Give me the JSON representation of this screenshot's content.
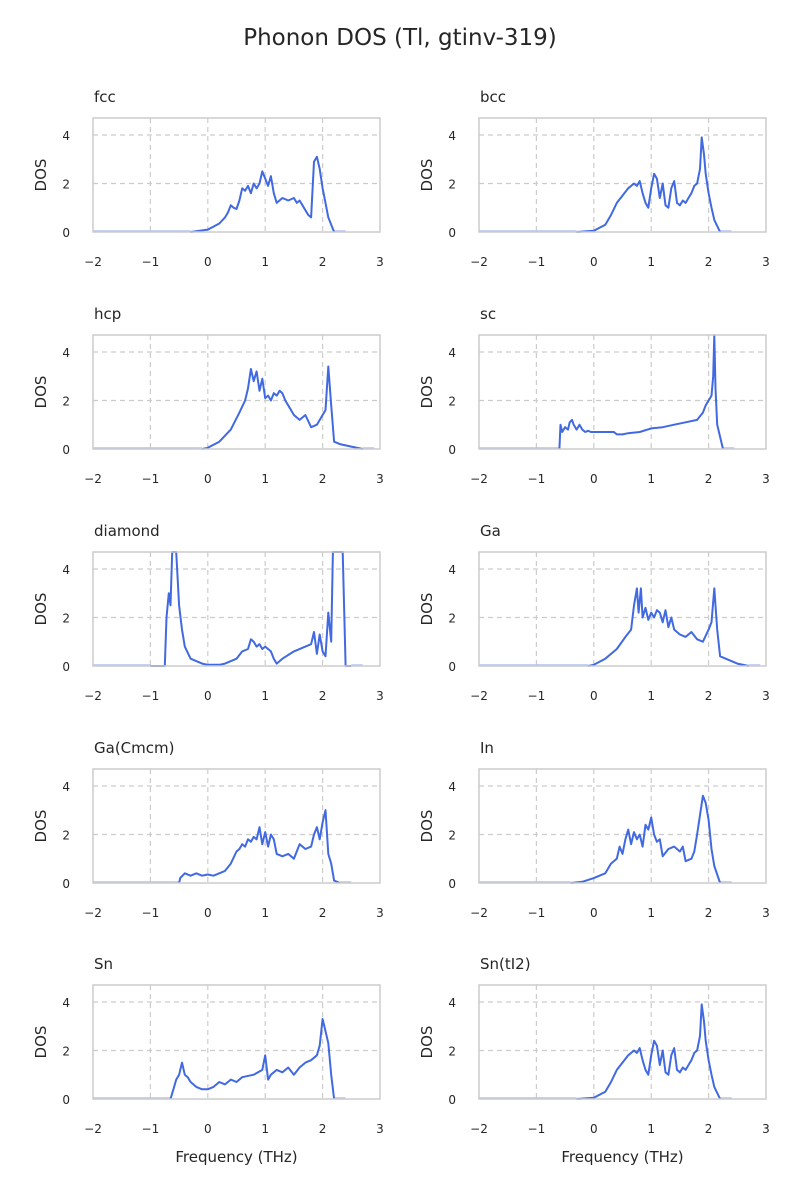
{
  "figure": {
    "title": "Phonon DOS (Tl, gtinv-319)"
  },
  "colors": {
    "line": "#4169e1",
    "tail": "#b4c4ee"
  },
  "chart_data": [
    {
      "type": "line",
      "title": "fcc",
      "xlabel": "",
      "ylabel": "DOS",
      "xlim": [
        -2,
        3
      ],
      "ylim": [
        0,
        4.7
      ],
      "xticks": [
        "−2",
        "−1",
        "0",
        "1",
        "2",
        "3"
      ],
      "yticks": [
        "0",
        "2",
        "4"
      ],
      "grid": true,
      "x": [
        -0.3,
        0.0,
        0.2,
        0.3,
        0.35,
        0.4,
        0.45,
        0.5,
        0.55,
        0.6,
        0.65,
        0.7,
        0.75,
        0.8,
        0.85,
        0.9,
        0.95,
        1.0,
        1.05,
        1.1,
        1.15,
        1.2,
        1.3,
        1.4,
        1.5,
        1.55,
        1.6,
        1.65,
        1.7,
        1.75,
        1.8,
        1.85,
        1.9,
        1.95,
        2.0,
        2.05,
        2.1,
        2.2
      ],
      "y": [
        0.0,
        0.1,
        0.35,
        0.6,
        0.8,
        1.1,
        1.0,
        0.95,
        1.3,
        1.8,
        1.7,
        1.9,
        1.6,
        2.0,
        1.8,
        2.0,
        2.5,
        2.2,
        1.9,
        2.3,
        1.6,
        1.2,
        1.4,
        1.3,
        1.4,
        1.2,
        1.3,
        1.1,
        0.9,
        0.7,
        0.6,
        2.9,
        3.1,
        2.6,
        1.8,
        1.2,
        0.6,
        0.0
      ]
    },
    {
      "type": "line",
      "title": "bcc",
      "xlabel": "",
      "ylabel": "DOS",
      "xlim": [
        -2,
        3
      ],
      "ylim": [
        0,
        4.7
      ],
      "xticks": [
        "−2",
        "−1",
        "0",
        "1",
        "2",
        "3"
      ],
      "yticks": [
        "0",
        "2",
        "4"
      ],
      "grid": true,
      "x": [
        -0.3,
        0.0,
        0.2,
        0.3,
        0.4,
        0.5,
        0.6,
        0.7,
        0.75,
        0.8,
        0.85,
        0.9,
        0.95,
        1.0,
        1.05,
        1.1,
        1.15,
        1.2,
        1.25,
        1.3,
        1.35,
        1.4,
        1.45,
        1.5,
        1.55,
        1.6,
        1.65,
        1.7,
        1.75,
        1.8,
        1.85,
        1.88,
        1.92,
        1.95,
        2.0,
        2.05,
        2.1,
        2.2
      ],
      "y": [
        0.0,
        0.05,
        0.3,
        0.7,
        1.2,
        1.5,
        1.8,
        2.0,
        1.9,
        2.1,
        1.6,
        1.2,
        1.0,
        1.8,
        2.4,
        2.2,
        1.4,
        2.0,
        1.1,
        1.0,
        1.8,
        2.1,
        1.2,
        1.1,
        1.3,
        1.2,
        1.4,
        1.6,
        1.9,
        2.0,
        2.6,
        3.9,
        3.2,
        2.4,
        1.6,
        1.0,
        0.5,
        0.0
      ]
    },
    {
      "type": "line",
      "title": "hcp",
      "xlabel": "",
      "ylabel": "DOS",
      "xlim": [
        -2,
        3
      ],
      "ylim": [
        0,
        4.7
      ],
      "xticks": [
        "−2",
        "−1",
        "0",
        "1",
        "2",
        "3"
      ],
      "yticks": [
        "0",
        "2",
        "4"
      ],
      "grid": true,
      "x": [
        -0.1,
        0.0,
        0.2,
        0.4,
        0.55,
        0.65,
        0.7,
        0.75,
        0.8,
        0.85,
        0.9,
        0.95,
        1.0,
        1.05,
        1.1,
        1.15,
        1.2,
        1.25,
        1.3,
        1.35,
        1.4,
        1.5,
        1.6,
        1.7,
        1.8,
        1.9,
        2.0,
        2.05,
        2.1,
        2.15,
        2.2,
        2.3,
        2.5,
        2.7
      ],
      "y": [
        0.0,
        0.05,
        0.3,
        0.8,
        1.5,
        2.0,
        2.5,
        3.3,
        2.8,
        3.2,
        2.4,
        2.9,
        2.1,
        2.2,
        2.0,
        2.3,
        2.2,
        2.4,
        2.3,
        2.0,
        1.8,
        1.4,
        1.2,
        1.4,
        0.9,
        1.0,
        1.4,
        1.6,
        3.4,
        1.8,
        0.3,
        0.2,
        0.1,
        0.0
      ]
    },
    {
      "type": "line",
      "title": "sc",
      "xlabel": "",
      "ylabel": "DOS",
      "xlim": [
        -2,
        3
      ],
      "ylim": [
        0,
        4.7
      ],
      "xticks": [
        "−2",
        "−1",
        "0",
        "1",
        "2",
        "3"
      ],
      "yticks": [
        "0",
        "2",
        "4"
      ],
      "grid": true,
      "x": [
        -0.6,
        -0.58,
        -0.55,
        -0.5,
        -0.45,
        -0.42,
        -0.38,
        -0.35,
        -0.3,
        -0.25,
        -0.2,
        -0.15,
        -0.1,
        -0.05,
        0.0,
        0.2,
        0.35,
        0.4,
        0.5,
        0.6,
        0.8,
        1.0,
        1.2,
        1.4,
        1.6,
        1.8,
        1.9,
        1.95,
        2.0,
        2.05,
        2.08,
        2.1,
        2.12,
        2.15,
        2.2,
        2.25
      ],
      "y": [
        0.0,
        1.0,
        0.7,
        0.9,
        0.8,
        1.1,
        1.2,
        1.0,
        0.8,
        1.0,
        0.8,
        0.7,
        0.75,
        0.7,
        0.7,
        0.7,
        0.7,
        0.6,
        0.6,
        0.65,
        0.7,
        0.85,
        0.9,
        1.0,
        1.1,
        1.2,
        1.5,
        1.8,
        2.0,
        2.2,
        3.0,
        4.7,
        2.5,
        1.0,
        0.5,
        0.0
      ]
    },
    {
      "type": "line",
      "title": "diamond",
      "xlabel": "",
      "ylabel": "DOS",
      "xlim": [
        -2,
        3
      ],
      "ylim": [
        0,
        4.7
      ],
      "xticks": [
        "−2",
        "−1",
        "0",
        "1",
        "2",
        "3"
      ],
      "yticks": [
        "0",
        "2",
        "4"
      ],
      "grid": true,
      "x": [
        -1.0,
        -0.75,
        -0.72,
        -0.68,
        -0.65,
        -0.62,
        -0.58,
        -0.55,
        -0.5,
        -0.45,
        -0.4,
        -0.3,
        -0.1,
        0.0,
        0.2,
        0.3,
        0.45,
        0.5,
        0.6,
        0.7,
        0.75,
        0.8,
        0.85,
        0.9,
        0.95,
        1.0,
        1.1,
        1.15,
        1.2,
        1.3,
        1.5,
        1.7,
        1.8,
        1.85,
        1.9,
        1.95,
        2.0,
        2.05,
        2.1,
        2.15,
        2.18,
        2.2,
        2.25,
        2.3,
        2.35,
        2.4,
        2.5
      ],
      "y": [
        0.0,
        0.0,
        2.0,
        3.0,
        2.5,
        4.7,
        4.7,
        4.7,
        2.5,
        1.5,
        0.8,
        0.3,
        0.1,
        0.05,
        0.05,
        0.1,
        0.25,
        0.3,
        0.6,
        0.7,
        1.1,
        1.0,
        0.8,
        0.9,
        0.7,
        0.8,
        0.6,
        0.3,
        0.1,
        0.3,
        0.6,
        0.8,
        0.9,
        1.4,
        0.5,
        1.3,
        0.6,
        0.4,
        2.2,
        1.0,
        4.7,
        4.7,
        4.7,
        4.7,
        4.7,
        0.0,
        0.0
      ]
    },
    {
      "type": "line",
      "title": "Ga",
      "xlabel": "",
      "ylabel": "DOS",
      "xlim": [
        -2,
        3
      ],
      "ylim": [
        0,
        4.7
      ],
      "xticks": [
        "−2",
        "−1",
        "0",
        "1",
        "2",
        "3"
      ],
      "yticks": [
        "0",
        "2",
        "4"
      ],
      "grid": true,
      "x": [
        -0.1,
        0.0,
        0.2,
        0.4,
        0.55,
        0.65,
        0.7,
        0.75,
        0.78,
        0.82,
        0.85,
        0.9,
        0.95,
        1.0,
        1.05,
        1.1,
        1.15,
        1.2,
        1.25,
        1.3,
        1.35,
        1.4,
        1.5,
        1.6,
        1.7,
        1.8,
        1.9,
        2.0,
        2.05,
        2.1,
        2.15,
        2.2,
        2.3,
        2.5,
        2.7
      ],
      "y": [
        0.0,
        0.05,
        0.3,
        0.7,
        1.2,
        1.5,
        2.5,
        3.2,
        2.2,
        3.2,
        2.0,
        2.4,
        1.9,
        2.2,
        2.0,
        2.3,
        2.2,
        1.8,
        2.3,
        1.6,
        2.0,
        1.5,
        1.3,
        1.2,
        1.4,
        1.1,
        1.0,
        1.5,
        1.8,
        3.2,
        1.5,
        0.4,
        0.3,
        0.1,
        0.0
      ]
    },
    {
      "type": "line",
      "title": "Ga(Cmcm)",
      "xlabel": "",
      "ylabel": "DOS",
      "xlim": [
        -2,
        3
      ],
      "ylim": [
        0,
        4.7
      ],
      "xticks": [
        "−2",
        "−1",
        "0",
        "1",
        "2",
        "3"
      ],
      "yticks": [
        "0",
        "2",
        "4"
      ],
      "grid": true,
      "x": [
        -0.5,
        -0.48,
        -0.4,
        -0.3,
        -0.2,
        -0.1,
        0.0,
        0.1,
        0.2,
        0.3,
        0.4,
        0.5,
        0.55,
        0.6,
        0.65,
        0.7,
        0.75,
        0.8,
        0.85,
        0.9,
        0.95,
        1.0,
        1.05,
        1.1,
        1.15,
        1.2,
        1.3,
        1.4,
        1.5,
        1.6,
        1.7,
        1.8,
        1.85,
        1.9,
        1.95,
        2.0,
        2.05,
        2.1,
        2.15,
        2.2,
        2.3
      ],
      "y": [
        0.0,
        0.2,
        0.4,
        0.3,
        0.4,
        0.3,
        0.35,
        0.3,
        0.4,
        0.5,
        0.8,
        1.3,
        1.4,
        1.6,
        1.5,
        1.8,
        1.7,
        1.9,
        1.8,
        2.3,
        1.6,
        2.1,
        1.5,
        2.0,
        1.8,
        1.2,
        1.1,
        1.2,
        1.0,
        1.6,
        1.4,
        1.5,
        2.0,
        2.3,
        1.8,
        2.5,
        3.0,
        1.2,
        0.8,
        0.1,
        0.0
      ]
    },
    {
      "type": "line",
      "title": "In",
      "xlabel": "",
      "ylabel": "DOS",
      "xlim": [
        -2,
        3
      ],
      "ylim": [
        0,
        4.7
      ],
      "xticks": [
        "−2",
        "−1",
        "0",
        "1",
        "2",
        "3"
      ],
      "yticks": [
        "0",
        "2",
        "4"
      ],
      "grid": true,
      "x": [
        -0.4,
        -0.2,
        0.0,
        0.1,
        0.2,
        0.3,
        0.4,
        0.45,
        0.5,
        0.55,
        0.6,
        0.65,
        0.7,
        0.75,
        0.8,
        0.85,
        0.9,
        0.95,
        1.0,
        1.05,
        1.1,
        1.15,
        1.2,
        1.3,
        1.4,
        1.5,
        1.55,
        1.6,
        1.7,
        1.75,
        1.8,
        1.85,
        1.9,
        1.95,
        2.0,
        2.05,
        2.1,
        2.2
      ],
      "y": [
        0.0,
        0.05,
        0.2,
        0.3,
        0.4,
        0.8,
        1.0,
        1.5,
        1.2,
        1.8,
        2.2,
        1.6,
        2.1,
        1.8,
        2.0,
        1.5,
        2.4,
        2.2,
        2.7,
        2.0,
        1.7,
        1.8,
        1.1,
        1.4,
        1.5,
        1.3,
        1.5,
        0.9,
        1.0,
        1.3,
        2.0,
        2.8,
        3.6,
        3.3,
        2.6,
        1.4,
        0.7,
        0.0
      ]
    },
    {
      "type": "line",
      "title": "Sn",
      "xlabel": "Frequency (THz)",
      "ylabel": "DOS",
      "xlim": [
        -2,
        3
      ],
      "ylim": [
        0,
        4.7
      ],
      "xticks": [
        "−2",
        "−1",
        "0",
        "1",
        "2",
        "3"
      ],
      "yticks": [
        "0",
        "2",
        "4"
      ],
      "grid": true,
      "x": [
        -0.65,
        -0.6,
        -0.55,
        -0.5,
        -0.45,
        -0.4,
        -0.35,
        -0.3,
        -0.2,
        -0.1,
        0.0,
        0.1,
        0.2,
        0.3,
        0.4,
        0.5,
        0.6,
        0.8,
        0.95,
        1.0,
        1.05,
        1.1,
        1.2,
        1.3,
        1.4,
        1.5,
        1.6,
        1.7,
        1.8,
        1.9,
        1.95,
        2.0,
        2.05,
        2.1,
        2.15,
        2.2
      ],
      "y": [
        0.0,
        0.4,
        0.8,
        1.0,
        1.5,
        1.0,
        0.9,
        0.7,
        0.5,
        0.4,
        0.4,
        0.5,
        0.7,
        0.6,
        0.8,
        0.7,
        0.9,
        1.0,
        1.2,
        1.8,
        0.8,
        1.0,
        1.2,
        1.1,
        1.3,
        1.0,
        1.3,
        1.5,
        1.6,
        1.8,
        2.2,
        3.3,
        2.8,
        2.3,
        1.0,
        0.0
      ]
    },
    {
      "type": "line",
      "title": "Sn(tI2)",
      "xlabel": "Frequency (THz)",
      "ylabel": "DOS",
      "xlim": [
        -2,
        3
      ],
      "ylim": [
        0,
        4.7
      ],
      "xticks": [
        "−2",
        "−1",
        "0",
        "1",
        "2",
        "3"
      ],
      "yticks": [
        "0",
        "2",
        "4"
      ],
      "grid": true,
      "x": [
        -0.3,
        0.0,
        0.2,
        0.3,
        0.4,
        0.5,
        0.6,
        0.7,
        0.75,
        0.8,
        0.85,
        0.9,
        0.95,
        1.0,
        1.05,
        1.1,
        1.15,
        1.2,
        1.25,
        1.3,
        1.35,
        1.4,
        1.45,
        1.5,
        1.55,
        1.6,
        1.65,
        1.7,
        1.75,
        1.8,
        1.85,
        1.88,
        1.92,
        1.95,
        2.0,
        2.05,
        2.1,
        2.2
      ],
      "y": [
        0.0,
        0.05,
        0.3,
        0.7,
        1.2,
        1.5,
        1.8,
        2.0,
        1.9,
        2.1,
        1.6,
        1.2,
        1.0,
        1.8,
        2.4,
        2.2,
        1.4,
        2.0,
        1.1,
        1.0,
        1.8,
        2.1,
        1.2,
        1.1,
        1.3,
        1.2,
        1.4,
        1.6,
        1.9,
        2.0,
        2.6,
        3.9,
        3.2,
        2.4,
        1.6,
        1.0,
        0.5,
        0.0
      ]
    }
  ]
}
